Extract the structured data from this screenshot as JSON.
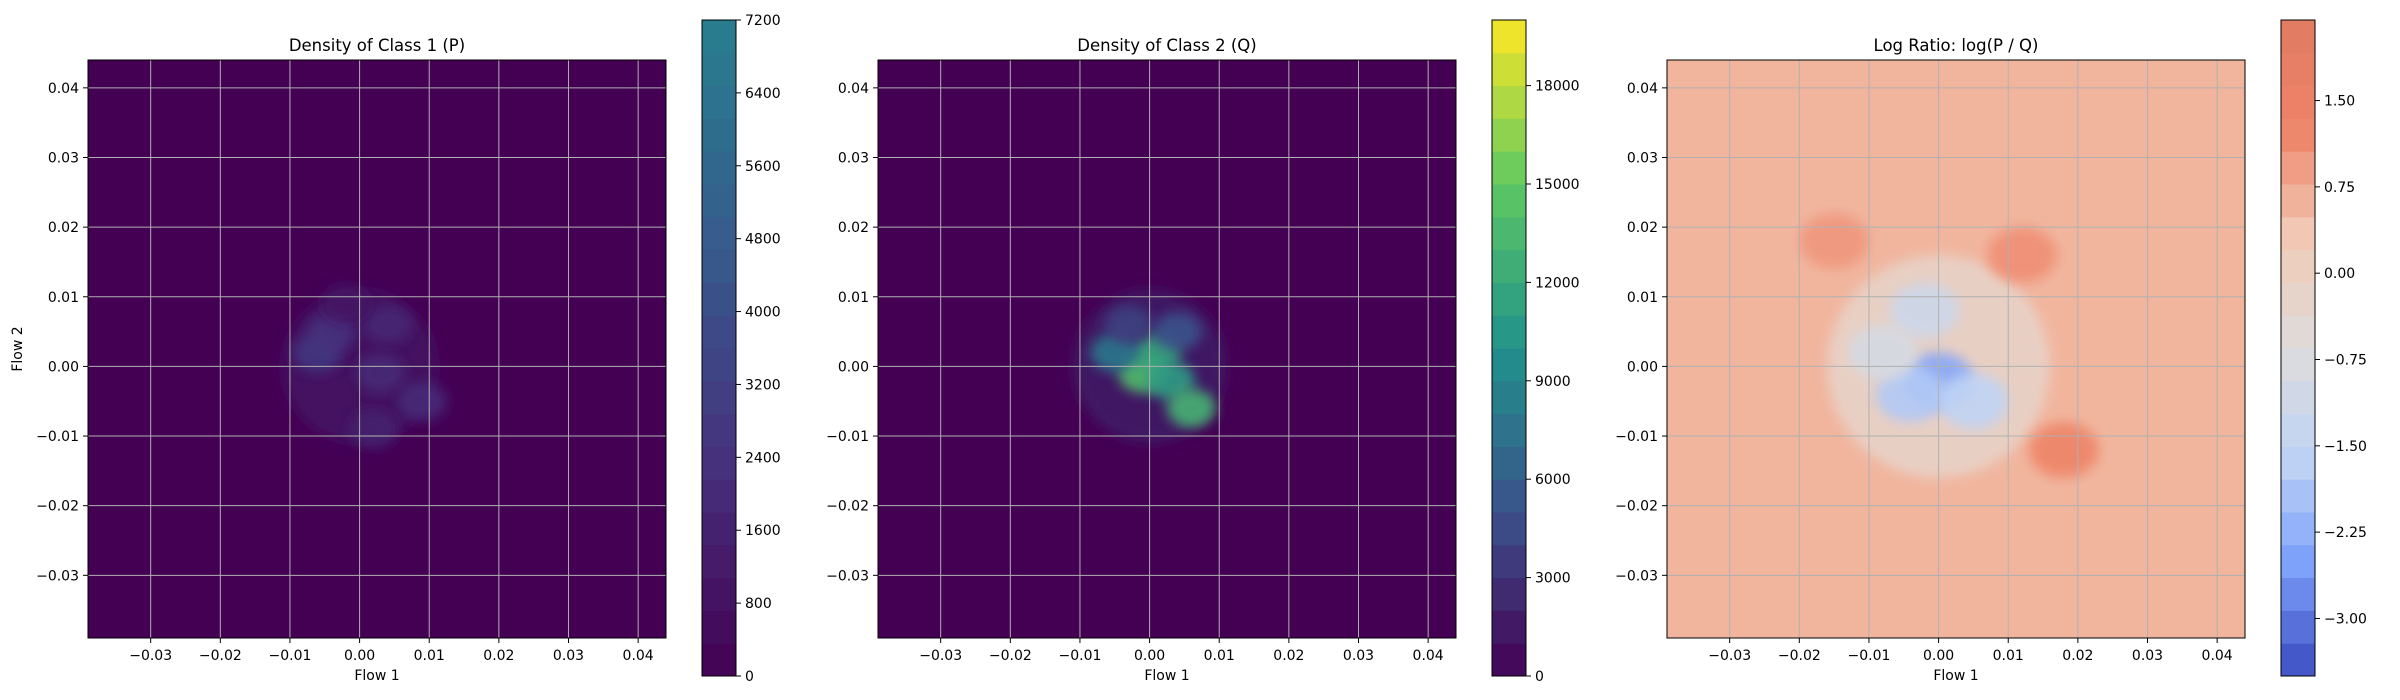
{
  "chart_data": [
    {
      "type": "heatmap",
      "title": "Density of Class 1 (P)",
      "xlabel": "Flow 1",
      "ylabel": "Flow 2",
      "xlim": [
        -0.039,
        0.044
      ],
      "ylim": [
        -0.039,
        0.044
      ],
      "xticks": [
        "−0.03",
        "−0.02",
        "−0.01",
        "0.00",
        "0.01",
        "0.02",
        "0.03",
        "0.04"
      ],
      "yticks": [
        "0.04",
        "0.03",
        "0.02",
        "0.01",
        "0.00",
        "−0.01",
        "−0.02",
        "−0.03"
      ],
      "grid": true,
      "colormap": "viridis",
      "colorbar": {
        "min": 0,
        "max": 7200,
        "ticks": [
          "7200",
          "6400",
          "5600",
          "4800",
          "4000",
          "3200",
          "2400",
          "1600",
          "800",
          "0"
        ],
        "colors": [
          "#440154",
          "#46327e",
          "#365c8d",
          "#277f8e"
        ]
      },
      "hotspots": [
        {
          "x": -0.006,
          "y": 0.002,
          "value": 2800
        },
        {
          "x": -0.004,
          "y": 0.005,
          "value": 2400
        },
        {
          "x": 0.004,
          "y": 0.006,
          "value": 1900
        },
        {
          "x": 0.003,
          "y": -0.001,
          "value": 2000
        },
        {
          "x": 0.009,
          "y": -0.005,
          "value": 2100
        },
        {
          "x": 0.002,
          "y": -0.009,
          "value": 1500
        },
        {
          "x": -0.002,
          "y": 0.009,
          "value": 900
        }
      ]
    },
    {
      "type": "heatmap",
      "title": "Density of Class 2 (Q)",
      "xlabel": "Flow 1",
      "ylabel": "",
      "xlim": [
        -0.039,
        0.044
      ],
      "ylim": [
        -0.039,
        0.044
      ],
      "xticks": [
        "−0.03",
        "−0.02",
        "−0.01",
        "0.00",
        "0.01",
        "0.02",
        "0.03",
        "0.04"
      ],
      "yticks": [
        "0.04",
        "0.03",
        "0.02",
        "0.01",
        "0.00",
        "−0.01",
        "−0.02",
        "−0.03"
      ],
      "grid": true,
      "colormap": "viridis",
      "colorbar": {
        "min": 0,
        "max": 20000,
        "ticks": [
          "18000",
          "15000",
          "12000",
          "9000",
          "6000",
          "3000",
          "0"
        ],
        "colors": [
          "#440154",
          "#3b528b",
          "#21918c",
          "#5ec962",
          "#fde725"
        ]
      },
      "hotspots": [
        {
          "x": -0.001,
          "y": -0.001,
          "value": 14000
        },
        {
          "x": 0.001,
          "y": 0.002,
          "value": 12000
        },
        {
          "x": 0.003,
          "y": -0.002,
          "value": 11000
        },
        {
          "x": 0.006,
          "y": -0.006,
          "value": 13000
        },
        {
          "x": -0.005,
          "y": 0.002,
          "value": 8000
        },
        {
          "x": 0.004,
          "y": 0.005,
          "value": 5000
        },
        {
          "x": -0.003,
          "y": 0.006,
          "value": 4000
        }
      ]
    },
    {
      "type": "heatmap",
      "title": "Log Ratio: log(P / Q)",
      "xlabel": "Flow 1",
      "ylabel": "",
      "xlim": [
        -0.039,
        0.044
      ],
      "ylim": [
        -0.039,
        0.044
      ],
      "xticks": [
        "−0.03",
        "−0.02",
        "−0.01",
        "0.00",
        "0.01",
        "0.02",
        "0.03",
        "0.04"
      ],
      "yticks": [
        "0.04",
        "0.03",
        "0.02",
        "0.01",
        "0.00",
        "−0.01",
        "−0.02",
        "−0.03"
      ],
      "grid": true,
      "colormap": "coolwarm",
      "colorbar": {
        "min": -3.5,
        "max": 2.2,
        "ticks": [
          "1.50",
          "0.75",
          "0.00",
          "−0.75",
          "−1.50",
          "−2.25",
          "−3.00"
        ],
        "colors": [
          "#3b4cc0",
          "#7b9ff9",
          "#c0d4f5",
          "#dddcdc",
          "#f2cbb7",
          "#ee8468",
          "#e07b62"
        ]
      },
      "background_value": 0.6,
      "hotspots": [
        {
          "x": 0.0,
          "y": -0.002,
          "value": -2.4
        },
        {
          "x": -0.004,
          "y": -0.004,
          "value": -1.8
        },
        {
          "x": 0.005,
          "y": -0.005,
          "value": -1.6
        },
        {
          "x": -0.002,
          "y": 0.008,
          "value": -1.2
        },
        {
          "x": -0.008,
          "y": 0.002,
          "value": -0.9
        },
        {
          "x": 0.018,
          "y": -0.012,
          "value": 1.3
        },
        {
          "x": 0.012,
          "y": 0.016,
          "value": 1.1
        },
        {
          "x": -0.015,
          "y": 0.018,
          "value": 1.0
        }
      ]
    }
  ]
}
